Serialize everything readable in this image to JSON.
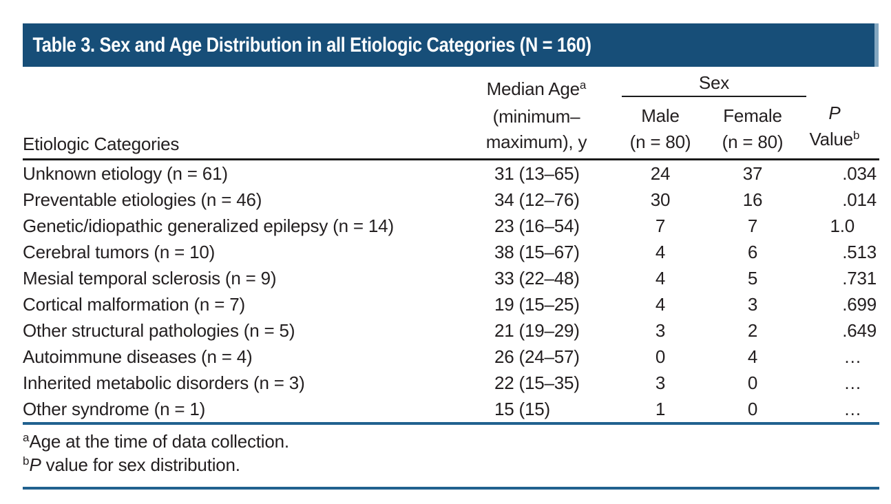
{
  "title": "Table 3. Sex and Age Distribution in all Etiologic Categories (N = 160)",
  "columns": {
    "category": "Etiologic Categories",
    "median_age": {
      "line1": "Median Age",
      "sup": "a",
      "line2": "(minimum–",
      "line3": "maximum), y"
    },
    "sex_group": "Sex",
    "male": {
      "line1": "Male",
      "line2": "(n = 80)"
    },
    "female": {
      "line1": "Female",
      "line2": "(n = 80)"
    },
    "p": {
      "line1": "P",
      "line2": "Value",
      "sup": "b"
    }
  },
  "rows": [
    {
      "category": "Unknown etiology (n = 61)",
      "median_age": "31 (13–65)",
      "male": "24",
      "female": "37",
      "p": ".034"
    },
    {
      "category": "Preventable etiologies (n = 46)",
      "median_age": "34 (12–76)",
      "male": "30",
      "female": "16",
      "p": ".014"
    },
    {
      "category": "Genetic/idiopathic generalized epilepsy (n = 14)",
      "median_age": "23 (16–54)",
      "male": "7",
      "female": "7",
      "p": "1.0"
    },
    {
      "category": "Cerebral tumors (n = 10)",
      "median_age": "38 (15–67)",
      "male": "4",
      "female": "6",
      "p": ".513"
    },
    {
      "category": "Mesial temporal sclerosis (n = 9)",
      "median_age": "33 (22–48)",
      "male": "4",
      "female": "5",
      "p": ".731"
    },
    {
      "category": "Cortical malformation (n = 7)",
      "median_age": "19 (15–25)",
      "male": "4",
      "female": "3",
      "p": ".699"
    },
    {
      "category": "Other structural pathologies (n = 5)",
      "median_age": "21 (19–29)",
      "male": "3",
      "female": "2",
      "p": ".649"
    },
    {
      "category": "Autoimmune diseases (n = 4)",
      "median_age": "26 (24–57)",
      "male": "0",
      "female": "4",
      "p": "…"
    },
    {
      "category": "Inherited metabolic disorders (n = 3)",
      "median_age": "22 (15–35)",
      "male": "3",
      "female": "0",
      "p": "…"
    },
    {
      "category": "Other syndrome (n = 1)",
      "median_age": "15 (15)",
      "male": "1",
      "female": "0",
      "p": "…"
    }
  ],
  "footnotes": [
    {
      "marker": "a",
      "lead": "",
      "text": "Age at the time of data collection."
    },
    {
      "marker": "b",
      "lead": "P",
      "text": " value for sex distribution."
    }
  ],
  "colors": {
    "title_band": "#174e78",
    "title_band_edge": "#84a7c0",
    "title_text": "#ffffff",
    "body_text": "#231f20",
    "black_rule": "#1a1a1a",
    "blue_rule": "#21618f"
  }
}
